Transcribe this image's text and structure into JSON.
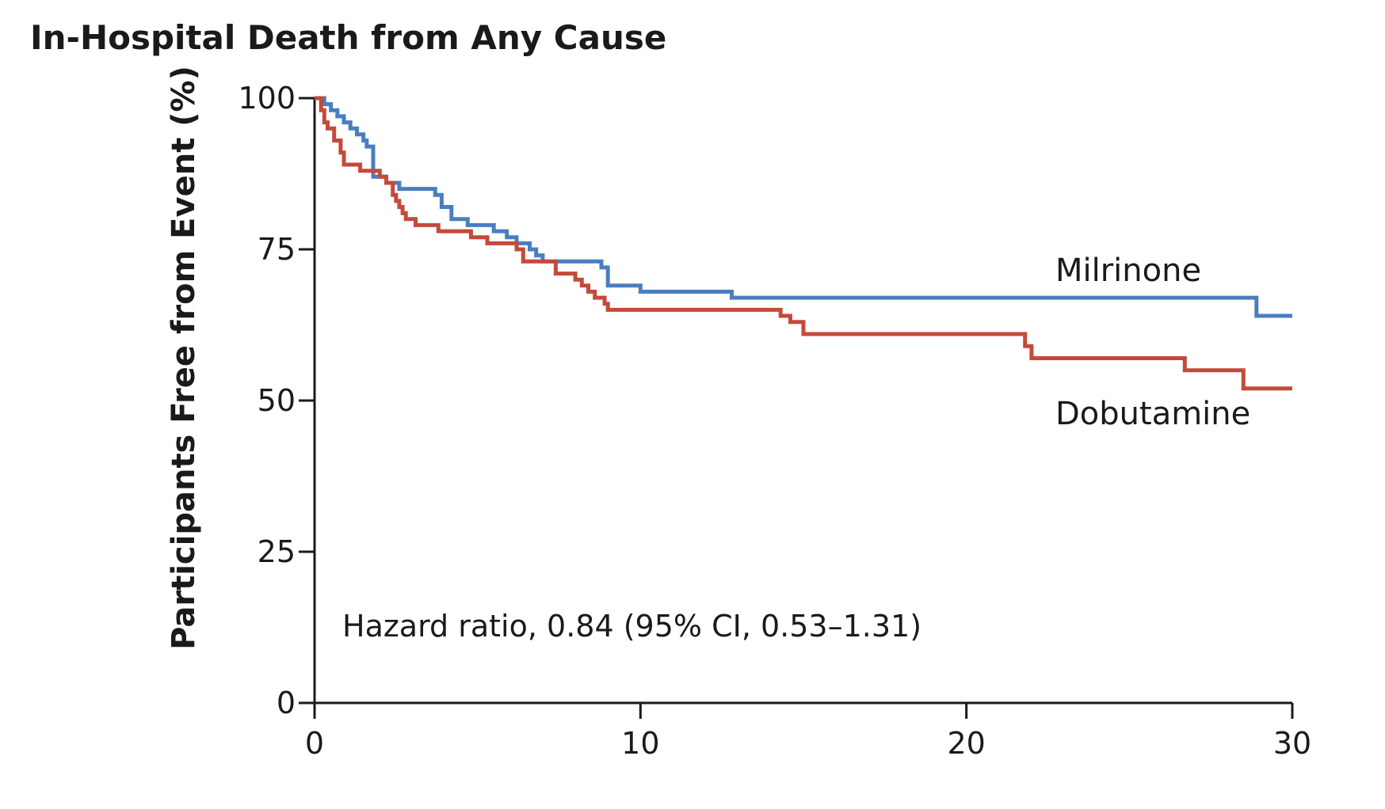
{
  "chart_data": {
    "type": "line",
    "title": "In-Hospital Death from Any Cause",
    "xlabel": "",
    "ylabel": "Participants Free from Event (%)",
    "xlim": [
      0,
      30
    ],
    "ylim": [
      0,
      100
    ],
    "x_ticks": [
      "0",
      "10",
      "20",
      "30"
    ],
    "y_ticks": [
      "0",
      "25",
      "50",
      "75",
      "100"
    ],
    "step": true,
    "grid": false,
    "series": [
      {
        "name": "Milrinone",
        "color": "#4a7ec0",
        "points": [
          [
            0,
            100
          ],
          [
            0.3,
            99
          ],
          [
            0.5,
            98
          ],
          [
            0.7,
            97
          ],
          [
            0.9,
            96
          ],
          [
            1.1,
            95
          ],
          [
            1.3,
            94
          ],
          [
            1.5,
            93
          ],
          [
            1.6,
            92
          ],
          [
            1.8,
            87
          ],
          [
            2.0,
            87
          ],
          [
            2.2,
            86
          ],
          [
            2.6,
            85
          ],
          [
            3.7,
            84
          ],
          [
            3.9,
            82
          ],
          [
            4.2,
            80
          ],
          [
            4.7,
            79
          ],
          [
            5.5,
            78
          ],
          [
            5.9,
            77
          ],
          [
            6.2,
            76
          ],
          [
            6.6,
            75
          ],
          [
            6.8,
            74
          ],
          [
            7.0,
            73
          ],
          [
            8.8,
            72
          ],
          [
            9.0,
            69
          ],
          [
            10.0,
            68
          ],
          [
            12.8,
            67
          ],
          [
            28.9,
            64
          ],
          [
            30,
            64
          ]
        ]
      },
      {
        "name": "Dobutamine",
        "color": "#c44a3a",
        "points": [
          [
            0,
            100
          ],
          [
            0.2,
            98
          ],
          [
            0.3,
            96
          ],
          [
            0.4,
            95
          ],
          [
            0.6,
            93
          ],
          [
            0.8,
            91
          ],
          [
            0.9,
            89
          ],
          [
            1.4,
            88
          ],
          [
            2.0,
            87
          ],
          [
            2.2,
            86
          ],
          [
            2.4,
            84
          ],
          [
            2.5,
            83
          ],
          [
            2.6,
            82
          ],
          [
            2.7,
            81
          ],
          [
            2.8,
            80
          ],
          [
            3.1,
            79
          ],
          [
            3.8,
            78
          ],
          [
            4.8,
            77
          ],
          [
            5.3,
            76
          ],
          [
            6.2,
            75
          ],
          [
            6.4,
            73
          ],
          [
            7.4,
            71
          ],
          [
            8.0,
            70
          ],
          [
            8.2,
            69
          ],
          [
            8.4,
            68
          ],
          [
            8.6,
            67
          ],
          [
            8.9,
            66
          ],
          [
            9.0,
            65
          ],
          [
            14.3,
            64
          ],
          [
            14.6,
            63
          ],
          [
            15.0,
            61
          ],
          [
            21.8,
            59
          ],
          [
            22.0,
            57
          ],
          [
            26.7,
            55
          ],
          [
            28.5,
            52
          ],
          [
            30,
            52
          ]
        ]
      }
    ],
    "annotation": "Hazard ratio, 0.84 (95% CI, 0.53–1.31)"
  }
}
